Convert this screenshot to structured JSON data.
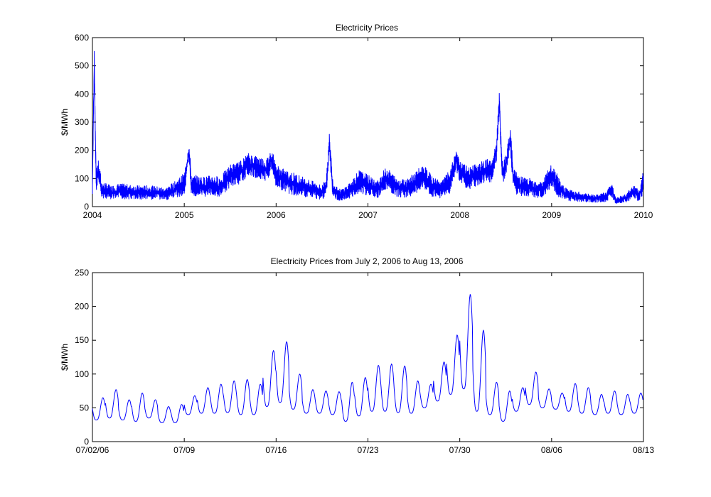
{
  "chart_data": [
    {
      "type": "line",
      "title": "Electricity Prices",
      "xlabel": "",
      "ylabel": "$/MWh",
      "xlim": [
        2004,
        2010
      ],
      "ylim": [
        0,
        600
      ],
      "xticks": [
        "2004",
        "2005",
        "2006",
        "2007",
        "2008",
        "2009",
        "2010"
      ],
      "yticks": [
        "0",
        "100",
        "200",
        "300",
        "400",
        "500",
        "600"
      ],
      "grid": false,
      "series_color": "#0000ff",
      "x": [
        2004.0,
        2004.02,
        2004.04,
        2004.06,
        2004.1,
        2004.2,
        2004.3,
        2004.4,
        2004.5,
        2004.6,
        2004.7,
        2004.8,
        2004.9,
        2005.0,
        2005.05,
        2005.08,
        2005.12,
        2005.2,
        2005.3,
        2005.4,
        2005.5,
        2005.6,
        2005.7,
        2005.8,
        2005.9,
        2005.95,
        2006.0,
        2006.1,
        2006.2,
        2006.3,
        2006.4,
        2006.5,
        2006.55,
        2006.58,
        2006.62,
        2006.7,
        2006.8,
        2006.9,
        2007.0,
        2007.1,
        2007.2,
        2007.3,
        2007.4,
        2007.5,
        2007.6,
        2007.7,
        2007.8,
        2007.9,
        2007.96,
        2008.0,
        2008.1,
        2008.2,
        2008.3,
        2008.35,
        2008.4,
        2008.43,
        2008.46,
        2008.5,
        2008.55,
        2008.58,
        2008.62,
        2008.7,
        2008.8,
        2008.9,
        2009.0,
        2009.1,
        2009.2,
        2009.3,
        2009.4,
        2009.5,
        2009.6,
        2009.65,
        2009.7,
        2009.8,
        2009.9,
        2009.96,
        2010.0
      ],
      "y": [
        60,
        520,
        90,
        130,
        60,
        50,
        55,
        52,
        50,
        50,
        48,
        45,
        60,
        80,
        195,
        70,
        75,
        70,
        75,
        70,
        110,
        120,
        150,
        140,
        130,
        170,
        110,
        90,
        80,
        70,
        60,
        50,
        80,
        220,
        60,
        40,
        55,
        90,
        75,
        60,
        100,
        70,
        65,
        80,
        110,
        70,
        60,
        90,
        170,
        120,
        100,
        115,
        130,
        120,
        200,
        370,
        120,
        140,
        245,
        110,
        80,
        70,
        65,
        60,
        110,
        55,
        40,
        35,
        30,
        30,
        35,
        60,
        20,
        30,
        50,
        40,
        95
      ]
    },
    {
      "type": "line",
      "title": "Electricity Prices from July 2, 2006 to Aug 13, 2006",
      "xlabel": "",
      "ylabel": "$/MWh",
      "xlim": [
        "07/02/06",
        "08/13/06"
      ],
      "ylim": [
        0,
        250
      ],
      "xticks": [
        "07/02/06",
        "07/09",
        "07/16",
        "07/23",
        "07/30",
        "08/06",
        "08/13"
      ],
      "yticks": [
        "0",
        "50",
        "100",
        "150",
        "200",
        "250"
      ],
      "grid": false,
      "series_color": "#0000ff",
      "daily_peaks": [
        65,
        77,
        62,
        72,
        62,
        52,
        55,
        68,
        80,
        85,
        90,
        92,
        85,
        135,
        148,
        100,
        77,
        75,
        74,
        88,
        95,
        113,
        115,
        112,
        90,
        85,
        118,
        158,
        218,
        165,
        88,
        75,
        80,
        103,
        78,
        72,
        86,
        80,
        70,
        75,
        70,
        72
      ],
      "daily_troughs": [
        32,
        35,
        32,
        30,
        35,
        28,
        28,
        40,
        42,
        42,
        43,
        40,
        40,
        52,
        58,
        48,
        42,
        42,
        40,
        30,
        38,
        45,
        45,
        43,
        42,
        50,
        60,
        70,
        78,
        45,
        40,
        30,
        45,
        55,
        50,
        48,
        45,
        42,
        40,
        42,
        40,
        42
      ]
    }
  ]
}
